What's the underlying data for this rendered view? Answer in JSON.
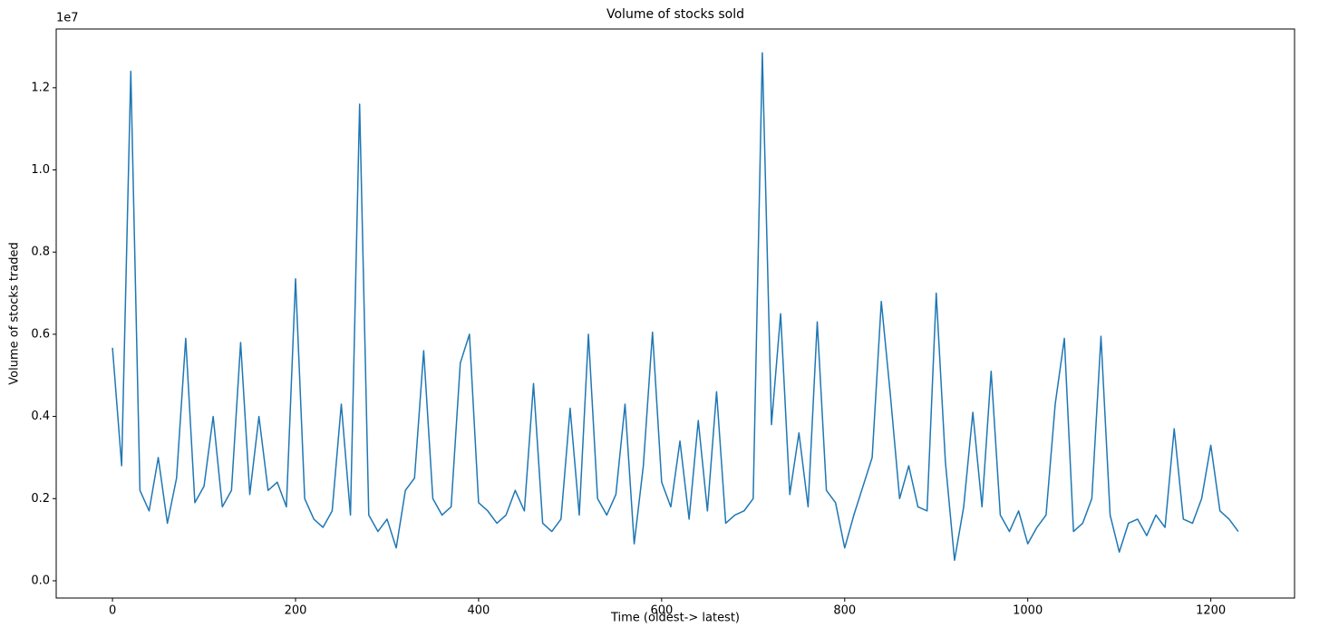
{
  "chart_data": {
    "type": "line",
    "title": "Volume of stocks sold",
    "x_label": "Time (oldest-> latest)",
    "y_label": "Volume of stocks traded",
    "y_offset_label": "1e7",
    "x": [
      0,
      10,
      20,
      30,
      40,
      50,
      60,
      70,
      80,
      90,
      100,
      110,
      120,
      130,
      140,
      150,
      160,
      170,
      180,
      190,
      200,
      210,
      220,
      230,
      240,
      250,
      260,
      270,
      280,
      290,
      300,
      310,
      320,
      330,
      340,
      350,
      360,
      370,
      380,
      390,
      400,
      410,
      420,
      430,
      440,
      450,
      460,
      470,
      480,
      490,
      500,
      510,
      520,
      530,
      540,
      550,
      560,
      570,
      580,
      590,
      600,
      610,
      620,
      630,
      640,
      650,
      660,
      670,
      680,
      690,
      700,
      710,
      720,
      730,
      740,
      750,
      760,
      770,
      780,
      790,
      800,
      810,
      820,
      830,
      840,
      850,
      860,
      870,
      880,
      890,
      900,
      910,
      920,
      930,
      940,
      950,
      960,
      970,
      980,
      990,
      1000,
      1010,
      1020,
      1030,
      1040,
      1050,
      1060,
      1070,
      1080,
      1090,
      1100,
      1110,
      1120,
      1130,
      1140,
      1150,
      1160,
      1170,
      1180,
      1190,
      1200,
      1210,
      1220,
      1230
    ],
    "series": [
      {
        "name": "Volume",
        "color": "#1f77b4",
        "values": [
          0.567,
          0.28,
          1.24,
          0.22,
          0.17,
          0.3,
          0.14,
          0.25,
          0.59,
          0.19,
          0.23,
          0.4,
          0.18,
          0.22,
          0.58,
          0.21,
          0.4,
          0.22,
          0.24,
          0.18,
          0.735,
          0.2,
          0.15,
          0.13,
          0.17,
          0.43,
          0.16,
          1.16,
          0.16,
          0.12,
          0.15,
          0.08,
          0.22,
          0.25,
          0.56,
          0.2,
          0.16,
          0.18,
          0.53,
          0.6,
          0.19,
          0.17,
          0.14,
          0.16,
          0.22,
          0.17,
          0.48,
          0.14,
          0.12,
          0.15,
          0.42,
          0.16,
          0.6,
          0.2,
          0.16,
          0.21,
          0.43,
          0.09,
          0.28,
          0.605,
          0.24,
          0.18,
          0.34,
          0.15,
          0.39,
          0.17,
          0.46,
          0.14,
          0.16,
          0.17,
          0.2,
          1.285,
          0.38,
          0.65,
          0.21,
          0.36,
          0.18,
          0.63,
          0.22,
          0.19,
          0.08,
          0.16,
          0.23,
          0.3,
          0.68,
          0.45,
          0.2,
          0.28,
          0.18,
          0.17,
          0.7,
          0.29,
          0.05,
          0.18,
          0.41,
          0.18,
          0.51,
          0.16,
          0.12,
          0.17,
          0.09,
          0.13,
          0.16,
          0.43,
          0.59,
          0.12,
          0.14,
          0.2,
          0.595,
          0.16,
          0.07,
          0.14,
          0.15,
          0.11,
          0.16,
          0.13,
          0.37,
          0.15,
          0.14,
          0.2,
          0.33,
          0.17,
          0.15,
          0.12
        ]
      }
    ],
    "xlim": [
      -61.5,
      1291.5
    ],
    "xticks": [
      0,
      200,
      400,
      600,
      800,
      1000,
      1200
    ],
    "ylim": [
      -0.042,
      1.343
    ],
    "yticks": [
      {
        "value": 0,
        "label": "0.0"
      },
      {
        "value": 0.2,
        "label": "0.2"
      },
      {
        "value": 0.4,
        "label": "0.4"
      },
      {
        "value": 0.6,
        "label": "0.6"
      },
      {
        "value": 0.8,
        "label": "0.8"
      },
      {
        "value": 1.0,
        "label": "1.0"
      },
      {
        "value": 1.2,
        "label": "1.2"
      }
    ],
    "grid": false
  }
}
